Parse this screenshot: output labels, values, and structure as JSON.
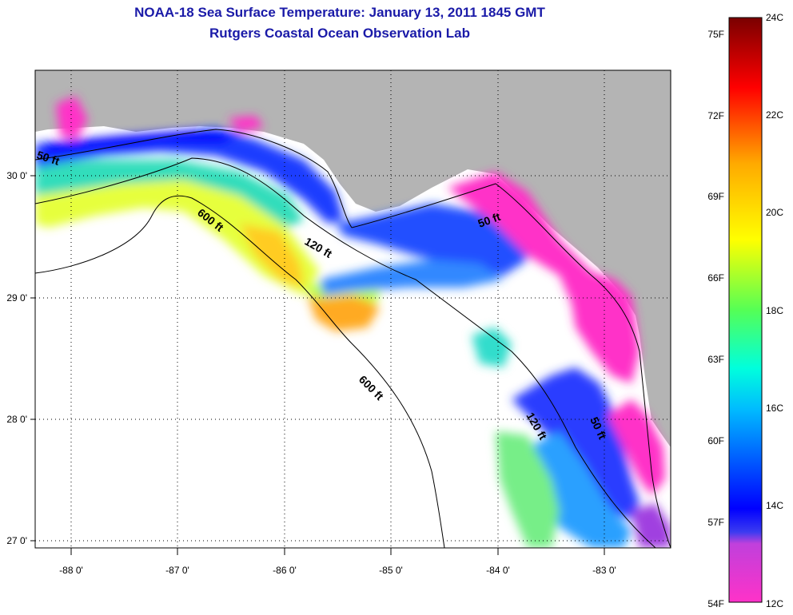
{
  "title": "NOAA-18 Sea Surface Temperature:  January 13, 2011 1845 GMT",
  "subtitle": "Rutgers Coastal Ocean Observation Lab",
  "map": {
    "lon_range": [
      -88.35,
      -82.45
    ],
    "lat_range": [
      26.95,
      30.85
    ],
    "lon_ticks": [
      "-88 0'",
      "-87 0'",
      "-86 0'",
      "-85 0'",
      "-84 0'",
      "-83 0'"
    ],
    "lat_ticks": [
      "30 0'",
      "29 0'",
      "28 0'",
      "27 0'"
    ],
    "land_color": "#b4b4b4",
    "no_data_color": "#ffffff",
    "contour_labels": {
      "c50_west": "50 ft",
      "c600_north": "600 ft",
      "c120_north": "120 ft",
      "c50_east": "50 ft",
      "c600_south": "600 ft",
      "c120_south": "120 ft",
      "c50_south": "50 ft"
    }
  },
  "colorbar": {
    "f_labels": [
      "75F",
      "72F",
      "69F",
      "66F",
      "63F",
      "60F",
      "57F",
      "54F"
    ],
    "c_labels": [
      "24C",
      "22C",
      "20C",
      "18C",
      "16C",
      "14C",
      "12C"
    ],
    "colors": [
      "#ff32c8",
      "#8c3cdc",
      "#0000ff",
      "#00aaff",
      "#00ffff",
      "#55ff55",
      "#ffff00",
      "#ffaa00",
      "#ff0000",
      "#7a0000"
    ]
  }
}
